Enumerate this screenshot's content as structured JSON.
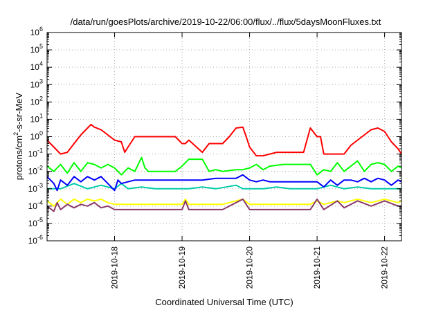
{
  "chart_data": {
    "type": "line",
    "title": "/data/run/goesPlots/archive/2019-10-22/06:00/flux/../flux/5daysMoonFluxes.txt",
    "xlabel": "Coordinated Universal Time (UTC)",
    "ylabel": {
      "base": "protons/cm",
      "sup": "2",
      "rest": "-s-sr-MeV"
    },
    "yscale": "log",
    "ylim": [
      -6,
      6
    ],
    "ytick_exponents": [
      -6,
      -5,
      -4,
      -3,
      -2,
      -1,
      0,
      1,
      2,
      3,
      4,
      5,
      6
    ],
    "ytick_base": "10",
    "xlim": [
      17.0,
      22.25
    ],
    "xticks": [
      {
        "x": 18,
        "label": "2019-10-18"
      },
      {
        "x": 19,
        "label": "2019-10-19"
      },
      {
        "x": 20,
        "label": "2019-10-20"
      },
      {
        "x": 21,
        "label": "2019-10-21"
      },
      {
        "x": 22,
        "label": "2019-10-22"
      }
    ],
    "grid": true,
    "series": [
      {
        "color": "#ff0000",
        "x": [
          17.0,
          17.1,
          17.2,
          17.3,
          17.4,
          17.5,
          17.6,
          17.65,
          17.7,
          17.8,
          17.9,
          18.0,
          18.1,
          18.15,
          18.2,
          18.3,
          18.4,
          18.9,
          19.0,
          19.05,
          19.1,
          19.3,
          19.4,
          19.6,
          19.7,
          19.8,
          19.9,
          19.95,
          20.0,
          20.1,
          20.2,
          20.4,
          20.5,
          20.8,
          20.9,
          21.0,
          21.05,
          21.1,
          21.3,
          21.4,
          21.5,
          21.6,
          21.7,
          21.8,
          21.9,
          22.0,
          22.1,
          22.2,
          22.25
        ],
        "logy": [
          -0.2,
          -0.6,
          -1.0,
          -0.9,
          -0.4,
          0.1,
          0.5,
          0.7,
          0.55,
          0.4,
          0.1,
          -0.2,
          -0.3,
          -0.9,
          -0.6,
          0.0,
          0.0,
          0.0,
          -0.4,
          -0.4,
          -0.2,
          -0.9,
          -0.4,
          -0.4,
          0.0,
          0.5,
          0.55,
          0.0,
          -0.6,
          -1.1,
          -1.1,
          -0.9,
          -0.9,
          -0.9,
          0.5,
          0.0,
          0.0,
          -1.0,
          -1.0,
          -1.0,
          -0.5,
          -0.2,
          0.1,
          0.4,
          0.5,
          0.3,
          -0.3,
          -0.7,
          -1.0
        ]
      },
      {
        "color": "#00ff00",
        "x": [
          17.0,
          17.1,
          17.2,
          17.3,
          17.4,
          17.5,
          17.6,
          17.7,
          17.8,
          17.9,
          18.0,
          18.1,
          18.2,
          18.3,
          18.4,
          18.45,
          18.5,
          18.9,
          19.0,
          19.1,
          19.3,
          19.4,
          19.5,
          19.6,
          19.8,
          19.9,
          20.0,
          20.1,
          20.2,
          20.3,
          20.5,
          20.6,
          20.8,
          20.9,
          21.0,
          21.1,
          21.2,
          21.3,
          21.4,
          21.5,
          21.6,
          21.7,
          21.8,
          21.9,
          22.0,
          22.1,
          22.2,
          22.25
        ],
        "logy": [
          -1.7,
          -2.0,
          -1.6,
          -2.1,
          -1.5,
          -2.0,
          -1.5,
          -1.6,
          -1.8,
          -1.6,
          -1.8,
          -2.2,
          -1.8,
          -2.0,
          -1.2,
          -1.8,
          -2.0,
          -2.0,
          -1.7,
          -1.3,
          -1.3,
          -2.0,
          -1.9,
          -2.0,
          -1.9,
          -1.9,
          -1.8,
          -1.6,
          -1.9,
          -1.7,
          -1.6,
          -1.6,
          -1.6,
          -1.6,
          -2.2,
          -1.9,
          -2.0,
          -1.5,
          -2.0,
          -1.7,
          -1.4,
          -2.0,
          -1.6,
          -1.5,
          -1.6,
          -2.0,
          -1.7,
          -1.8
        ]
      },
      {
        "color": "#00ccaa",
        "x": [
          17.0,
          17.2,
          17.4,
          17.6,
          17.8,
          18.0,
          18.1,
          18.2,
          18.4,
          18.6,
          19.0,
          19.1,
          19.3,
          19.5,
          19.8,
          19.9,
          20.0,
          20.2,
          20.4,
          20.6,
          20.9,
          21.0,
          21.2,
          21.4,
          21.6,
          21.8,
          22.0,
          22.2,
          22.25
        ],
        "logy": [
          -3.0,
          -3.0,
          -2.7,
          -3.0,
          -2.8,
          -3.0,
          -2.7,
          -3.0,
          -2.9,
          -3.0,
          -3.0,
          -3.0,
          -2.9,
          -3.0,
          -2.8,
          -3.0,
          -3.0,
          -3.0,
          -2.9,
          -3.0,
          -3.0,
          -3.0,
          -2.8,
          -3.0,
          -2.9,
          -3.0,
          -3.0,
          -3.0,
          -3.0
        ]
      },
      {
        "color": "#0000ff",
        "x": [
          17.0,
          17.1,
          17.15,
          17.2,
          17.3,
          17.4,
          17.5,
          17.6,
          17.7,
          17.8,
          17.9,
          18.0,
          18.05,
          18.1,
          18.2,
          18.3,
          18.4,
          18.5,
          19.0,
          19.1,
          19.3,
          19.5,
          19.8,
          19.9,
          20.0,
          20.1,
          20.2,
          20.3,
          20.5,
          20.9,
          21.0,
          21.1,
          21.2,
          21.3,
          21.4,
          21.5,
          21.6,
          21.7,
          21.8,
          21.9,
          22.0,
          22.1,
          22.2,
          22.25
        ],
        "logy": [
          -2.3,
          -2.7,
          -3.1,
          -2.5,
          -2.8,
          -2.3,
          -2.6,
          -2.3,
          -2.5,
          -2.3,
          -2.7,
          -3.1,
          -2.5,
          -2.7,
          -2.6,
          -2.5,
          -2.5,
          -2.5,
          -2.5,
          -2.5,
          -2.5,
          -2.4,
          -2.4,
          -2.2,
          -2.5,
          -2.6,
          -2.5,
          -2.6,
          -2.6,
          -2.6,
          -2.6,
          -2.9,
          -2.5,
          -2.8,
          -2.5,
          -2.5,
          -2.6,
          -2.4,
          -2.6,
          -2.4,
          -2.5,
          -2.8,
          -2.5,
          -2.6
        ]
      },
      {
        "color": "#ffff00",
        "x": [
          17.0,
          17.1,
          17.2,
          17.3,
          17.4,
          17.5,
          17.6,
          17.7,
          17.8,
          17.9,
          18.0,
          18.2,
          18.4,
          19.0,
          19.05,
          19.1,
          19.5,
          19.6,
          19.9,
          20.0,
          20.1,
          20.5,
          20.6,
          20.9,
          21.0,
          21.1,
          21.3,
          21.4,
          21.6,
          21.8,
          22.0,
          22.2,
          22.25
        ],
        "logy": [
          -3.7,
          -4.0,
          -3.6,
          -3.9,
          -3.6,
          -3.8,
          -3.6,
          -3.7,
          -3.6,
          -3.8,
          -3.9,
          -3.9,
          -3.9,
          -3.9,
          -3.6,
          -3.9,
          -3.9,
          -3.9,
          -3.6,
          -3.9,
          -3.9,
          -3.9,
          -3.9,
          -3.9,
          -3.7,
          -3.9,
          -3.7,
          -3.8,
          -3.6,
          -3.8,
          -3.6,
          -3.8,
          -3.7
        ]
      },
      {
        "color": "#8b3a6b",
        "x": [
          17.0,
          17.1,
          17.15,
          17.2,
          17.3,
          17.4,
          17.5,
          17.6,
          17.7,
          17.8,
          17.9,
          18.0,
          18.2,
          18.4,
          19.0,
          19.05,
          19.1,
          19.5,
          19.6,
          19.9,
          20.0,
          20.1,
          20.5,
          20.6,
          20.9,
          21.0,
          21.1,
          21.3,
          21.4,
          21.6,
          21.8,
          22.0,
          22.2,
          22.25
        ],
        "logy": [
          -4.0,
          -4.3,
          -3.8,
          -4.2,
          -3.9,
          -4.1,
          -3.9,
          -4.0,
          -3.8,
          -4.1,
          -4.0,
          -4.2,
          -4.2,
          -4.2,
          -4.2,
          -3.7,
          -4.2,
          -4.2,
          -4.2,
          -3.6,
          -4.2,
          -4.2,
          -4.2,
          -4.2,
          -4.2,
          -3.6,
          -4.2,
          -3.7,
          -4.1,
          -3.7,
          -4.0,
          -3.7,
          -4.0,
          -4.0
        ]
      }
    ]
  }
}
